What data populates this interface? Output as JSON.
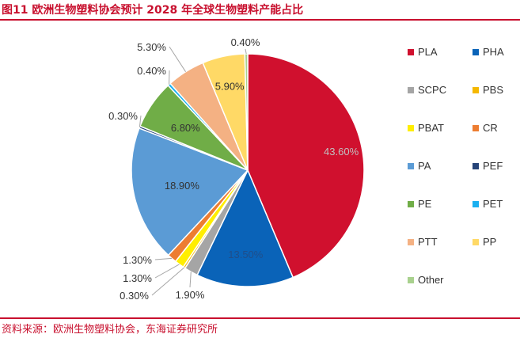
{
  "figure": {
    "title": "图11  欧洲生物塑料协会预计 2028 年全球生物塑料产能占比",
    "source": "资料来源：欧洲生物塑料协会，东海证券研究所"
  },
  "chart_data": {
    "type": "pie",
    "title": "欧洲生物塑料协会预计 2028 年全球生物塑料产能占比",
    "unit": "%",
    "legend_position": "right",
    "slices": [
      {
        "name": "PLA",
        "value": 43.6,
        "label": "43.60%",
        "color": "#d0102e"
      },
      {
        "name": "PHA",
        "value": 13.5,
        "label": "13.50%",
        "color": "#0a63b8"
      },
      {
        "name": "SCPC",
        "value": 1.9,
        "label": "1.90%",
        "color": "#a5a5a5"
      },
      {
        "name": "PBS",
        "value": 0.3,
        "label": "0.30%",
        "color": "#f5b800"
      },
      {
        "name": "PBAT",
        "value": 1.3,
        "label": "1.30%",
        "color": "#ffee00"
      },
      {
        "name": "CR",
        "value": 1.3,
        "label": "1.30%",
        "color": "#ed7d31"
      },
      {
        "name": "PA",
        "value": 18.9,
        "label": "18.90%",
        "color": "#5b9bd5"
      },
      {
        "name": "PEF",
        "value": 0.3,
        "label": "0.30%",
        "color": "#264478"
      },
      {
        "name": "PE",
        "value": 6.8,
        "label": "6.80%",
        "color": "#70ad47"
      },
      {
        "name": "PET",
        "value": 0.4,
        "label": "0.40%",
        "color": "#1ab0f0"
      },
      {
        "name": "PTT",
        "value": 5.3,
        "label": "5.30%",
        "color": "#f4b183"
      },
      {
        "name": "PP",
        "value": 5.9,
        "label": "5.90%",
        "color": "#ffd966"
      },
      {
        "name": "Other",
        "value": 0.4,
        "label": "0.40%",
        "color": "#a9d18e"
      }
    ]
  }
}
